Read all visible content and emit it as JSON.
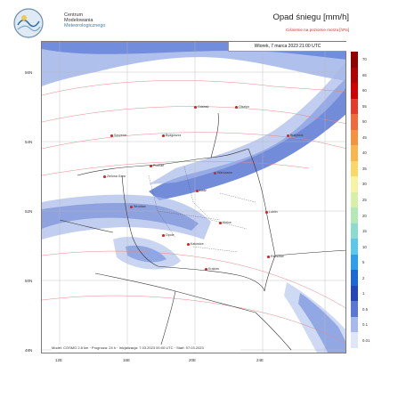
{
  "header": {
    "org_line1": "Centrum",
    "org_line2": "Modelowania",
    "org_line3": "Meteorologicznego",
    "title": "Opad śniegu [mm/h]",
    "subtitle": "Ciśnienie na poziomie morza [hPa]",
    "datetime": "Wtorek, 7 marca 2023 21:00 UTC"
  },
  "footer": {
    "text": "Model: COSMO 2.8 km · Prognoza: 24 h · Inicjalizacja: 7.03.2023 00:00 UTC · Start: 07.03.2023"
  },
  "axes": {
    "lat_labels": [
      "56N",
      "54N",
      "52N",
      "50N",
      "48N"
    ],
    "lon_labels": [
      "12E",
      "16E",
      "20E",
      "24E"
    ]
  },
  "legend": {
    "labels": [
      "70",
      "65",
      "60",
      "55",
      "50",
      "45",
      "40",
      "35",
      "30",
      "25",
      "20",
      "15",
      "10",
      "5",
      "2",
      "1",
      "0.5",
      "0.1",
      "0.01"
    ],
    "colors": [
      "#8e0000",
      "#b00000",
      "#d10000",
      "#e53a2d",
      "#ef6a3c",
      "#f5923f",
      "#f8b64d",
      "#f9d86a",
      "#f7f3a3",
      "#d6f0a8",
      "#b3e8b8",
      "#8ddbd0",
      "#5cc7e8",
      "#2f9ee8",
      "#1a67d6",
      "#2546b8",
      "#5978d4",
      "#a6b9ea",
      "#dfe6f7"
    ]
  },
  "cities": [
    "Gdańsk",
    "Olsztyn",
    "Szczecin",
    "Bydgoszcz",
    "Białystok",
    "Poznań",
    "Warszawa",
    "Łódź",
    "Wrocław",
    "Lublin",
    "Kielce",
    "Rzeszów",
    "Katowice",
    "Kraków",
    "Opole",
    "Zielona Góra"
  ],
  "colors": {
    "snow_light": "#a6b9ea",
    "snow_mid": "#5978d4",
    "snow_heavy": "#1a67d6",
    "borders": "#333333",
    "isobars": "#e08a8a"
  }
}
